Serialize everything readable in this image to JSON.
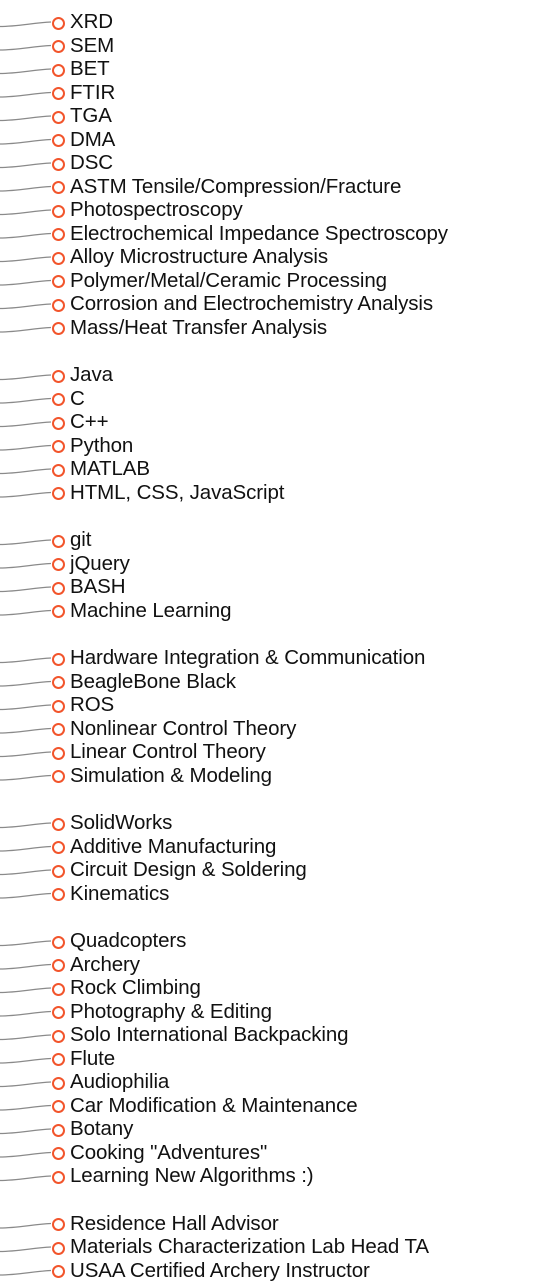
{
  "colors": {
    "node_circle": "#f2552c",
    "connector": "#8a8a8a",
    "label": "#111111"
  },
  "groups": [
    {
      "items": [
        "XRD",
        "SEM",
        "BET",
        "FTIR",
        "TGA",
        "DMA",
        "DSC",
        "ASTM Tensile/Compression/Fracture",
        "Photospectroscopy",
        "Electrochemical Impedance Spectroscopy",
        "Alloy Microstructure Analysis",
        "Polymer/Metal/Ceramic Processing",
        "Corrosion and Electrochemistry Analysis",
        "Mass/Heat Transfer Analysis"
      ]
    },
    {
      "items": [
        "Java",
        "C",
        "C++",
        "Python",
        "MATLAB",
        "HTML, CSS, JavaScript"
      ]
    },
    {
      "items": [
        "git",
        "jQuery",
        "BASH",
        "Machine Learning"
      ]
    },
    {
      "items": [
        "Hardware Integration & Communication",
        "BeagleBone Black",
        "ROS",
        "Nonlinear Control Theory",
        "Linear Control Theory",
        "Simulation & Modeling"
      ]
    },
    {
      "items": [
        "SolidWorks",
        "Additive Manufacturing",
        "Circuit Design & Soldering",
        "Kinematics"
      ]
    },
    {
      "items": [
        "Quadcopters",
        "Archery",
        "Rock Climbing",
        "Photography & Editing",
        "Solo International Backpacking",
        "Flute",
        "Audiophilia",
        "Car Modification & Maintenance",
        "Botany",
        "Cooking \"Adventures\"",
        "Learning New Algorithms :)"
      ]
    },
    {
      "items": [
        "Residence Hall Advisor",
        "Materials Characterization Lab Head TA",
        "USAA Certified Archery Instructor"
      ]
    }
  ]
}
